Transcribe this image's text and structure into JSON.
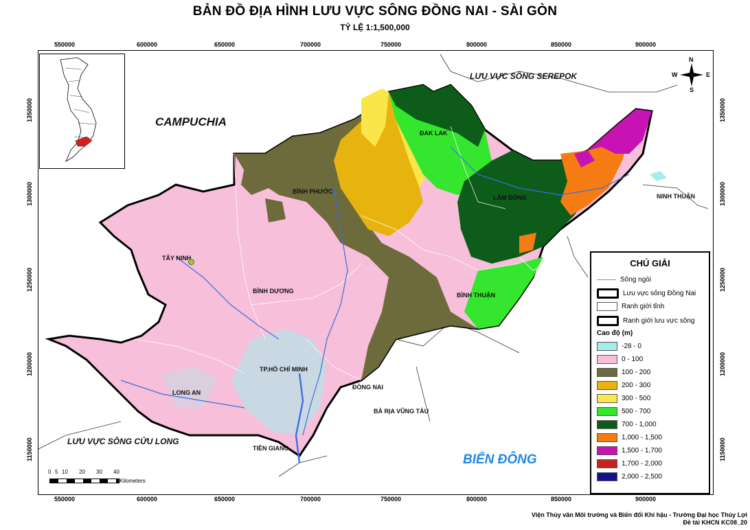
{
  "title": "BẢN ĐỒ ĐỊA HÌNH LƯU VỰC SÔNG ĐỒNG NAI - SÀI GÒN",
  "scale": "TỶ LỆ    1:1,500,000",
  "x_ticks": [
    "550000",
    "600000",
    "650000",
    "700000",
    "750000",
    "800000",
    "850000",
    "900000"
  ],
  "y_ticks": [
    "1350000",
    "1300000",
    "1250000",
    "1200000",
    "1150000"
  ],
  "labels": {
    "campuchia": "CAMPUCHIA",
    "serepok": "LƯU VỰC SÔNG SEREPOK",
    "cuu_long": "LƯU VỰC SÔNG CỬU LONG",
    "bien_dong": "BIỂN ĐÔNG",
    "dak_lak": "ĐAK LAK",
    "lam_dong": "LÂM ĐỒNG",
    "ninh_thuan": "NINH THUẬN",
    "binh_phuoc": "BÌNH PHƯỚC",
    "tay_ninh": "TÂY NINH",
    "binh_duong": "BÌNH DƯƠNG",
    "binh_thuan": "BÌNH THUẬN",
    "tp_hcm": "TP.HỒ CHÍ MINH",
    "long_an": "LONG AN",
    "dong_nai": "ĐỒNG NAI",
    "ba_ria": "BÀ RỊA VŨNG TÀU",
    "tien_giang": "TIỀN GIANG"
  },
  "compass": {
    "n": "N",
    "s": "S",
    "e": "E",
    "w": "W"
  },
  "scalebar": {
    "ticks": [
      "0",
      "5",
      "10",
      "20",
      "30",
      "40"
    ],
    "unit": "Kilometers"
  },
  "legend": {
    "title": "CHÚ GIẢI",
    "items": [
      {
        "label": "Sông ngòi"
      },
      {
        "label": "Lưu vực sông Đồng Nai"
      },
      {
        "label": "Ranh giới tỉnh"
      },
      {
        "label": "Ranh giới lưu vực sông"
      }
    ],
    "elev_title": "Cao độ (m)",
    "classes": [
      {
        "label": "-28 - 0",
        "color": "#a6ecec"
      },
      {
        "label": "0 - 100",
        "color": "#f7bfd9"
      },
      {
        "label": "100 - 200",
        "color": "#6d6a3b"
      },
      {
        "label": "200 - 300",
        "color": "#e7b40f"
      },
      {
        "label": "300 - 500",
        "color": "#fbe64a"
      },
      {
        "label": "500 - 700",
        "color": "#35e62e"
      },
      {
        "label": "700 - 1,000",
        "color": "#0d5c1a"
      },
      {
        "label": "1,000 - 1,500",
        "color": "#f57c12"
      },
      {
        "label": "1,500 - 1,700",
        "color": "#c712b4"
      },
      {
        "label": "1,700 - 2,000",
        "color": "#c62222"
      },
      {
        "label": "2,000 - 2,500",
        "color": "#15108f"
      }
    ]
  },
  "credits": {
    "line1": "Viện Thủy văn Môi trường và Biến đổi Khí hậu - Trường Đại học Thủy Lợi",
    "line2": "Đề tài KHCN KC08_20"
  }
}
